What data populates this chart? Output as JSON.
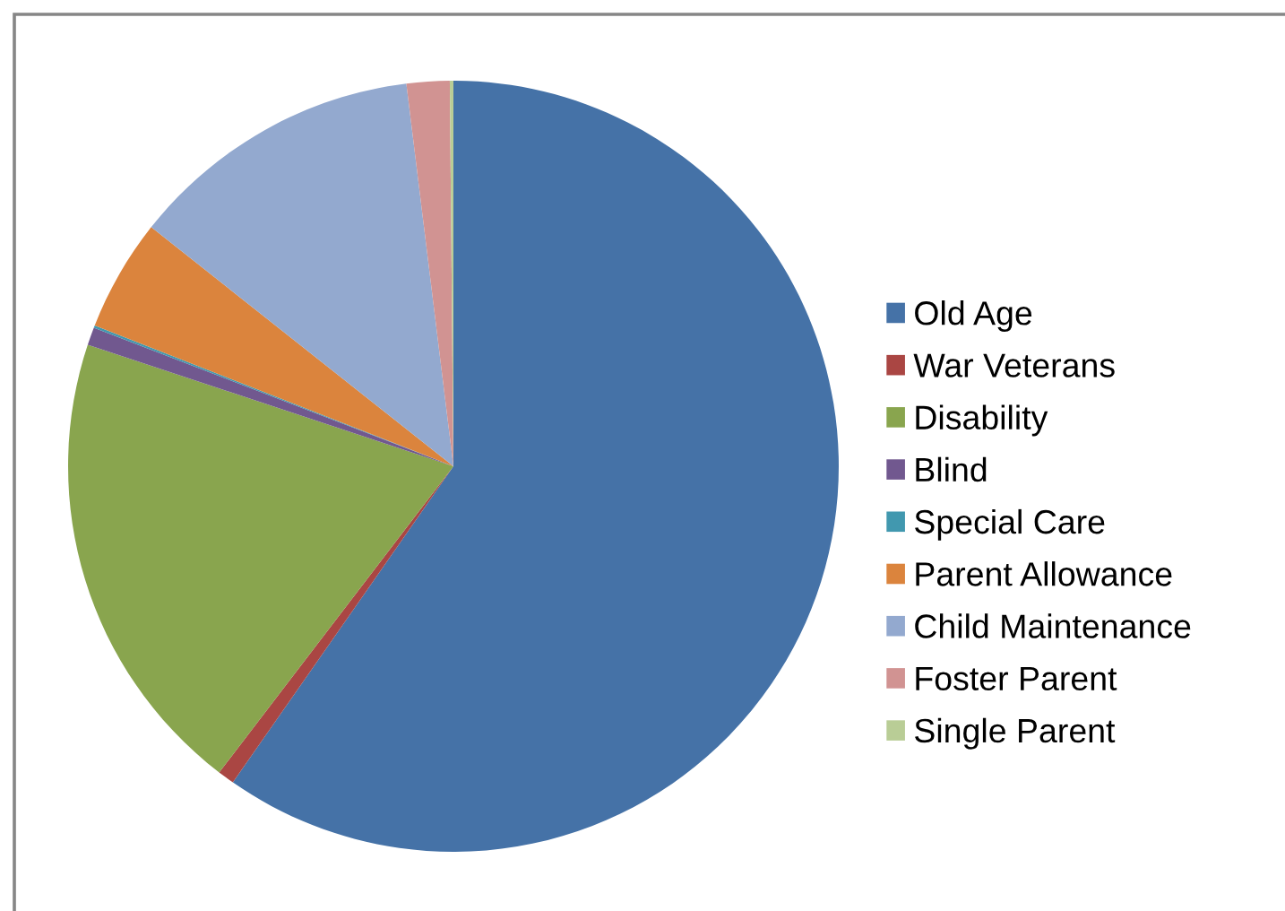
{
  "chart_data": {
    "type": "pie",
    "categories": [
      "Old Age",
      "War Veterans",
      "Disability",
      "Blind",
      "Special Care",
      "Parent Allowance",
      "Child Maintenance",
      "Foster Parent",
      "Single Parent"
    ],
    "values": [
      59.7,
      0.7,
      19.7,
      0.75,
      0.1,
      4.7,
      12.4,
      1.8,
      0.15
    ],
    "colors": [
      "#4572a7",
      "#aa4643",
      "#89a54e",
      "#71588f",
      "#4198af",
      "#db843d",
      "#93a9cf",
      "#d19392",
      "#b9cd96"
    ],
    "legend": "right"
  }
}
